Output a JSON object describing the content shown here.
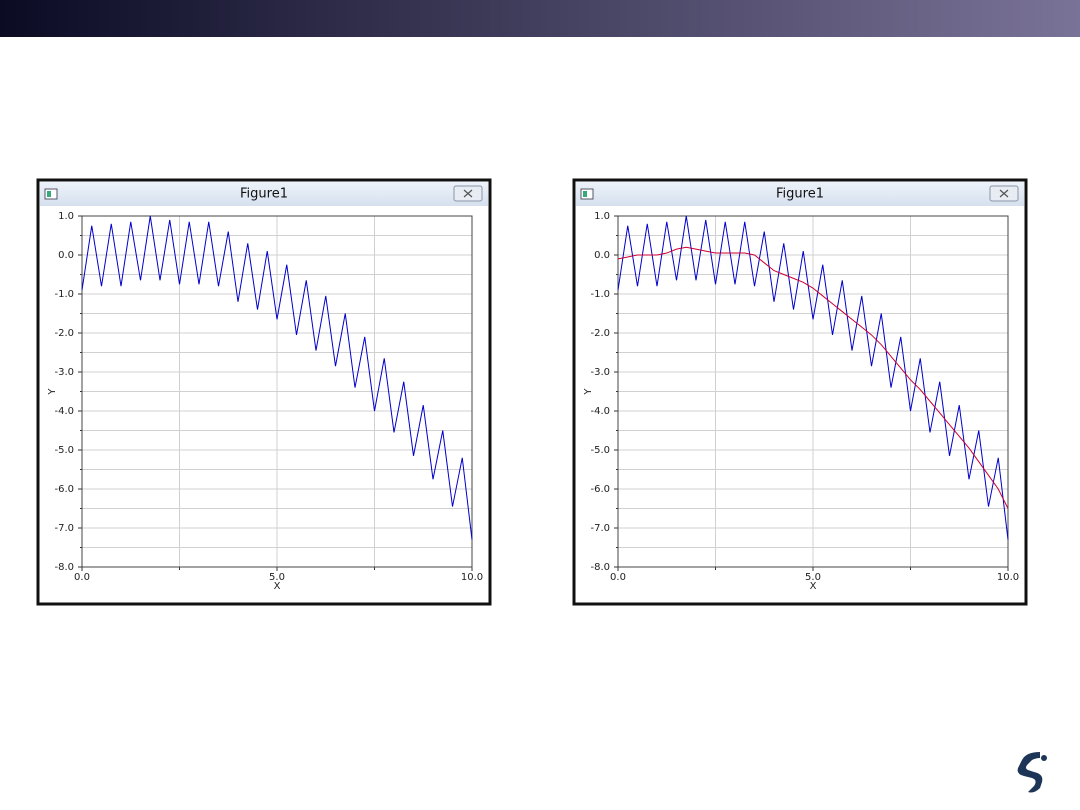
{
  "chart_data": [
    {
      "type": "line",
      "window_title": "Figure1",
      "x_label": "X",
      "y_label": "Y",
      "x": [
        0,
        0.25,
        0.5,
        0.75,
        1,
        1.25,
        1.5,
        1.75,
        2,
        2.25,
        2.5,
        2.75,
        3,
        3.25,
        3.5,
        3.75,
        4,
        4.25,
        4.5,
        4.75,
        5,
        5.25,
        5.5,
        5.75,
        6,
        6.25,
        6.5,
        6.75,
        7,
        7.25,
        7.5,
        7.75,
        8,
        8.25,
        8.5,
        8.75,
        9,
        9.25,
        9.5,
        9.75,
        10
      ],
      "series": [
        {
          "color": "#0000cc",
          "values": [
            -0.9,
            0.75,
            -0.8,
            0.8,
            -0.8,
            0.85,
            -0.65,
            1.0,
            -0.65,
            0.9,
            -0.75,
            0.85,
            -0.75,
            0.85,
            -0.8,
            0.6,
            -1.2,
            0.3,
            -1.4,
            0.1,
            -1.65,
            -0.25,
            -2.05,
            -0.65,
            -2.45,
            -1.05,
            -2.85,
            -1.5,
            -3.4,
            -2.1,
            -4.0,
            -2.65,
            -4.55,
            -3.25,
            -5.15,
            -3.85,
            -5.75,
            -4.5,
            -6.45,
            -5.2,
            -7.3
          ]
        }
      ],
      "xlim": [
        0,
        10
      ],
      "xticks": [
        {
          "value": 0,
          "label": "0.0"
        },
        {
          "value": 5,
          "label": "5.0"
        },
        {
          "value": 10,
          "label": "10.0"
        }
      ],
      "xminor_ticks": [
        2.5,
        7.5
      ],
      "ylim": [
        -8,
        1
      ],
      "yticks": [
        {
          "value": -8,
          "label": "-8.0"
        },
        {
          "value": -7,
          "label": "-7.0"
        },
        {
          "value": -6,
          "label": "-6.0"
        },
        {
          "value": -5,
          "label": "-5.0"
        },
        {
          "value": -4,
          "label": "-4.0"
        },
        {
          "value": -3,
          "label": "-3.0"
        },
        {
          "value": -2,
          "label": "-2.0"
        },
        {
          "value": -1,
          "label": "-1.0"
        },
        {
          "value": 0,
          "label": "0.0"
        },
        {
          "value": 1,
          "label": "1.0"
        }
      ],
      "yminor_ticks": [
        -7.5,
        -6.5,
        -5.5,
        -4.5,
        -3.5,
        -2.5,
        -1.5,
        -0.5,
        0.5
      ],
      "grid": true
    },
    {
      "type": "line",
      "window_title": "Figure1",
      "x_label": "X",
      "y_label": "Y",
      "x": [
        0,
        0.25,
        0.5,
        0.75,
        1,
        1.25,
        1.5,
        1.75,
        2,
        2.25,
        2.5,
        2.75,
        3,
        3.25,
        3.5,
        3.75,
        4,
        4.25,
        4.5,
        4.75,
        5,
        5.25,
        5.5,
        5.75,
        6,
        6.25,
        6.5,
        6.75,
        7,
        7.25,
        7.5,
        7.75,
        8,
        8.25,
        8.5,
        8.75,
        9,
        9.25,
        9.5,
        9.75,
        10
      ],
      "series": [
        {
          "color": "#0000cc",
          "values": [
            -0.9,
            0.75,
            -0.8,
            0.8,
            -0.8,
            0.85,
            -0.65,
            1.0,
            -0.65,
            0.9,
            -0.75,
            0.85,
            -0.75,
            0.85,
            -0.8,
            0.6,
            -1.2,
            0.3,
            -1.4,
            0.1,
            -1.65,
            -0.25,
            -2.05,
            -0.65,
            -2.45,
            -1.05,
            -2.85,
            -1.5,
            -3.4,
            -2.1,
            -4.0,
            -2.65,
            -4.55,
            -3.25,
            -5.15,
            -3.85,
            -5.75,
            -4.5,
            -6.45,
            -5.2,
            -7.3
          ]
        },
        {
          "color": "#cc0033",
          "values": [
            -0.1,
            -0.05,
            0,
            0,
            0,
            0.05,
            0.15,
            0.2,
            0.15,
            0.1,
            0.05,
            0.05,
            0.05,
            0.05,
            0,
            -0.2,
            -0.4,
            -0.5,
            -0.6,
            -0.7,
            -0.85,
            -1.05,
            -1.25,
            -1.45,
            -1.65,
            -1.85,
            -2.05,
            -2.3,
            -2.6,
            -2.9,
            -3.2,
            -3.45,
            -3.75,
            -4.05,
            -4.35,
            -4.65,
            -4.95,
            -5.3,
            -5.65,
            -6.0,
            -6.5
          ]
        }
      ],
      "xlim": [
        0,
        10
      ],
      "xticks": [
        {
          "value": 0,
          "label": "0.0"
        },
        {
          "value": 5,
          "label": "5.0"
        },
        {
          "value": 10,
          "label": "10.0"
        }
      ],
      "xminor_ticks": [
        2.5,
        7.5
      ],
      "ylim": [
        -8,
        1
      ],
      "yticks": [
        {
          "value": -8,
          "label": "-8.0"
        },
        {
          "value": -7,
          "label": "-7.0"
        },
        {
          "value": -6,
          "label": "-6.0"
        },
        {
          "value": -5,
          "label": "-5.0"
        },
        {
          "value": -4,
          "label": "-4.0"
        },
        {
          "value": -3,
          "label": "-3.0"
        },
        {
          "value": -2,
          "label": "-2.0"
        },
        {
          "value": -1,
          "label": "-1.0"
        },
        {
          "value": 0,
          "label": "0.0"
        },
        {
          "value": 1,
          "label": "1.0"
        }
      ],
      "yminor_ticks": [
        -7.5,
        -6.5,
        -5.5,
        -4.5,
        -3.5,
        -2.5,
        -1.5,
        -0.5,
        0.5
      ],
      "grid": true
    }
  ]
}
